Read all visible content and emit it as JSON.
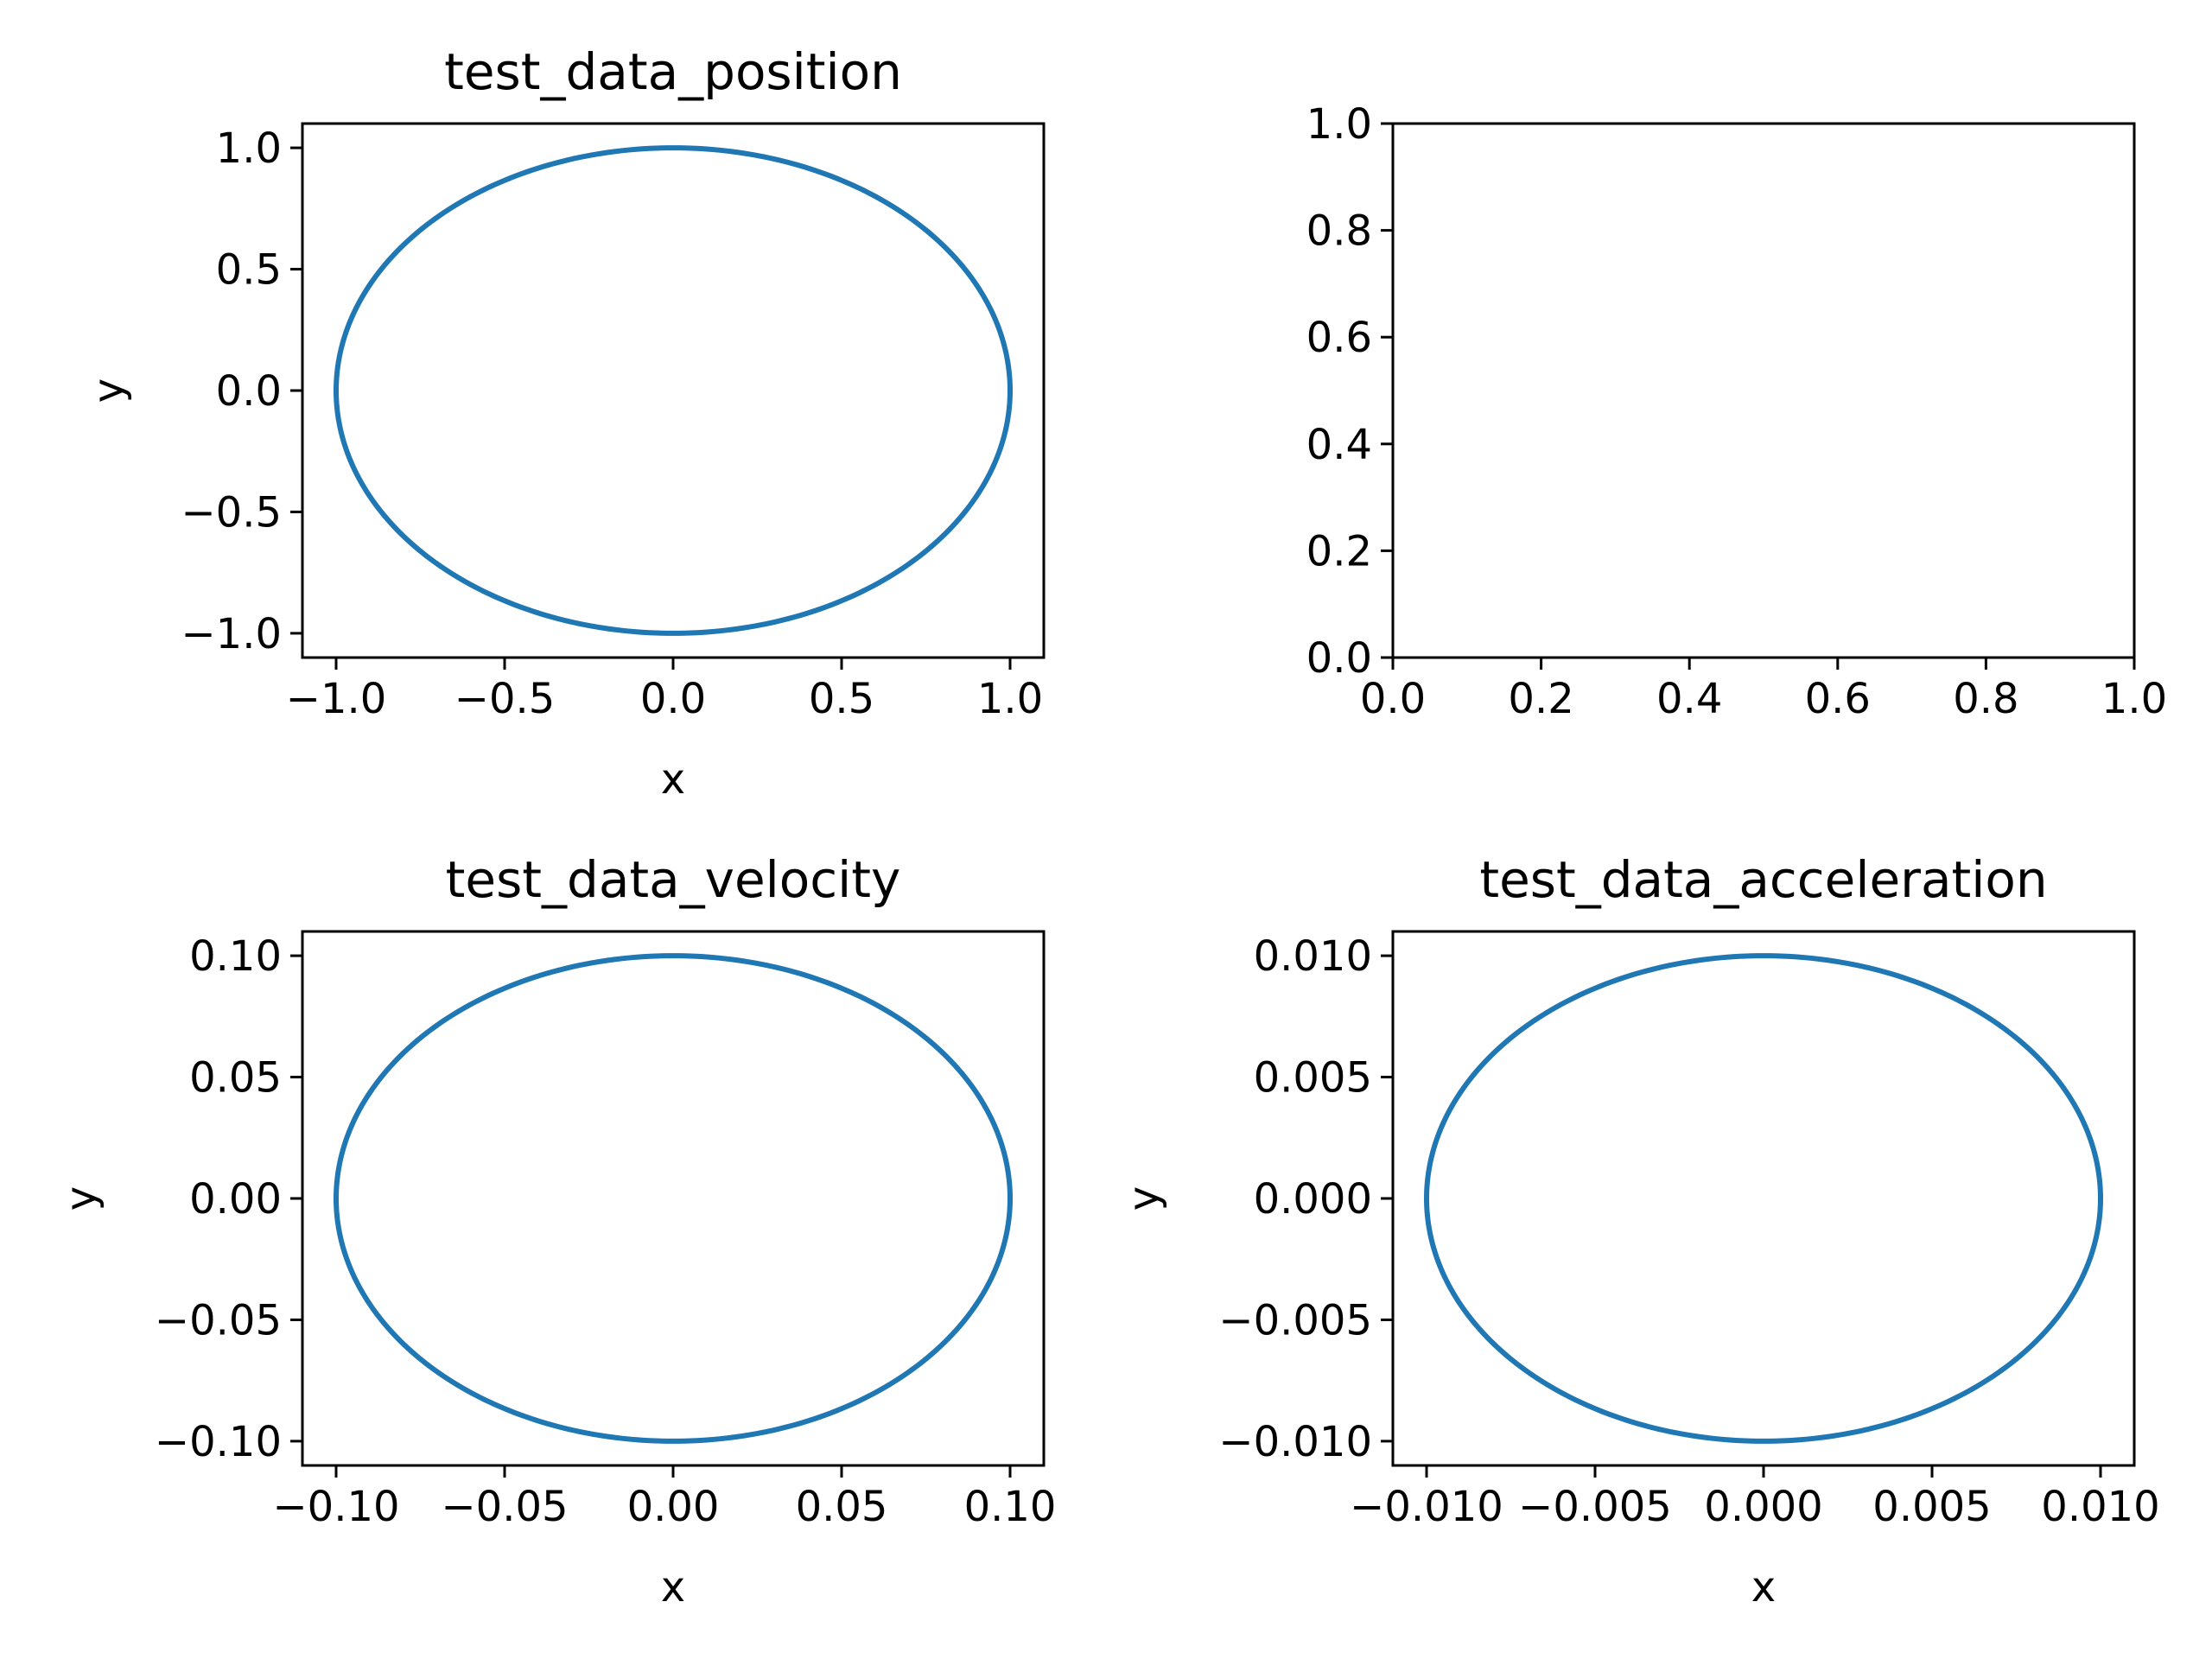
{
  "figure": {
    "line_color": "#1f77b4"
  },
  "chart_data": [
    {
      "id": "position",
      "type": "line",
      "title": "test_data_position",
      "xlabel": "x",
      "ylabel": "y",
      "xlim": [
        -1.1,
        1.1
      ],
      "ylim": [
        -1.1,
        1.1
      ],
      "xticks": [
        -1.0,
        -0.5,
        0.0,
        0.5,
        1.0
      ],
      "yticks": [
        -1.0,
        -0.5,
        0.0,
        0.5,
        1.0
      ],
      "xtick_labels": [
        "−1.0",
        "−0.5",
        "0.0",
        "0.5",
        "1.0"
      ],
      "ytick_labels": [
        "−1.0",
        "−0.5",
        "0.0",
        "0.5",
        "1.0"
      ],
      "grid": false,
      "series": [
        {
          "shape": "circle",
          "center": [
            0,
            0
          ],
          "radius": 1.0
        }
      ]
    },
    {
      "id": "empty",
      "type": "line",
      "title": "",
      "xlabel": "",
      "ylabel": "",
      "xlim": [
        0.0,
        1.0
      ],
      "ylim": [
        0.0,
        1.0
      ],
      "xticks": [
        0.0,
        0.2,
        0.4,
        0.6,
        0.8,
        1.0
      ],
      "yticks": [
        0.0,
        0.2,
        0.4,
        0.6,
        0.8,
        1.0
      ],
      "xtick_labels": [
        "0.0",
        "0.2",
        "0.4",
        "0.6",
        "0.8",
        "1.0"
      ],
      "ytick_labels": [
        "0.0",
        "0.2",
        "0.4",
        "0.6",
        "0.8",
        "1.0"
      ],
      "grid": false,
      "series": []
    },
    {
      "id": "velocity",
      "type": "line",
      "title": "test_data_velocity",
      "xlabel": "x",
      "ylabel": "y",
      "xlim": [
        -0.11,
        0.11
      ],
      "ylim": [
        -0.11,
        0.11
      ],
      "xticks": [
        -0.1,
        -0.05,
        0.0,
        0.05,
        0.1
      ],
      "yticks": [
        -0.1,
        -0.05,
        0.0,
        0.05,
        0.1
      ],
      "xtick_labels": [
        "−0.10",
        "−0.05",
        "0.00",
        "0.05",
        "0.10"
      ],
      "ytick_labels": [
        "−0.10",
        "−0.05",
        "0.00",
        "0.05",
        "0.10"
      ],
      "grid": false,
      "series": [
        {
          "shape": "circle",
          "center": [
            0,
            0
          ],
          "radius": 0.1
        }
      ]
    },
    {
      "id": "acceleration",
      "type": "line",
      "title": "test_data_acceleration",
      "xlabel": "x",
      "ylabel": "y",
      "xlim": [
        -0.011,
        0.011
      ],
      "ylim": [
        -0.011,
        0.011
      ],
      "xticks": [
        -0.01,
        -0.005,
        0.0,
        0.005,
        0.01
      ],
      "yticks": [
        -0.01,
        -0.005,
        0.0,
        0.005,
        0.01
      ],
      "xtick_labels": [
        "−0.010",
        "−0.005",
        "0.000",
        "0.005",
        "0.010"
      ],
      "ytick_labels": [
        "−0.010",
        "−0.005",
        "0.000",
        "0.005",
        "0.010"
      ],
      "grid": false,
      "series": [
        {
          "shape": "circle",
          "center": [
            0,
            0
          ],
          "radius": 0.01
        }
      ]
    }
  ]
}
